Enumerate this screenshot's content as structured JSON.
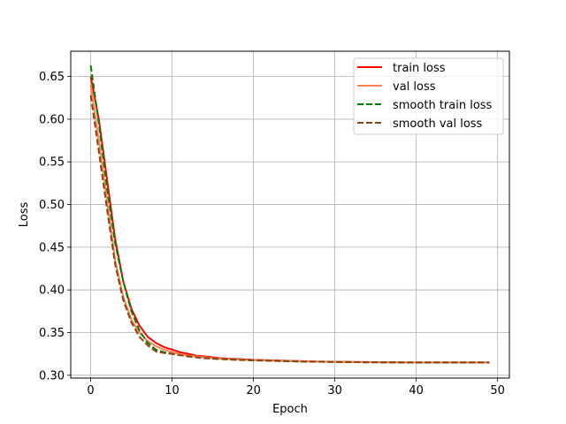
{
  "chart_data": {
    "type": "line",
    "title": "",
    "xlabel": "Epoch",
    "ylabel": "Loss",
    "xlim": [
      -2.45,
      51.45
    ],
    "ylim": [
      0.2967,
      0.6796
    ],
    "xticks": [
      0,
      10,
      20,
      30,
      40,
      50
    ],
    "xtick_labels": [
      "0",
      "10",
      "20",
      "30",
      "40",
      "50"
    ],
    "yticks": [
      0.3,
      0.35,
      0.4,
      0.45,
      0.5,
      0.55,
      0.6,
      0.65
    ],
    "ytick_labels": [
      "0.30",
      "0.35",
      "0.40",
      "0.45",
      "0.50",
      "0.55",
      "0.60",
      "0.65"
    ],
    "grid": true,
    "legend_position": "top-right",
    "series": [
      {
        "name": "train loss",
        "color": "#ff0000",
        "dash": "solid",
        "x": [
          0,
          1,
          2,
          3,
          4,
          5,
          6,
          7,
          8,
          9,
          10,
          11,
          12,
          13,
          14,
          15,
          16,
          17,
          18,
          19,
          20,
          22,
          24,
          26,
          28,
          30,
          32,
          34,
          36,
          38,
          40,
          42,
          44,
          46,
          48,
          49
        ],
        "y": [
          0.65,
          0.6,
          0.53,
          0.46,
          0.41,
          0.378,
          0.358,
          0.345,
          0.338,
          0.333,
          0.33,
          0.327,
          0.325,
          0.323,
          0.322,
          0.321,
          0.32,
          0.3195,
          0.319,
          0.3185,
          0.318,
          0.3175,
          0.317,
          0.3165,
          0.316,
          0.3158,
          0.3156,
          0.3154,
          0.3152,
          0.3151,
          0.315,
          0.315,
          0.315,
          0.315,
          0.315,
          0.315
        ]
      },
      {
        "name": "val loss",
        "color": "#ff7f50",
        "dash": "solid",
        "x": [
          0,
          1,
          2,
          3,
          4,
          5,
          6,
          7,
          8,
          9,
          10,
          11,
          12,
          13,
          14,
          15,
          16,
          17,
          18,
          19,
          20,
          22,
          24,
          26,
          28,
          30,
          32,
          34,
          36,
          38,
          40,
          42,
          44,
          46,
          48,
          49
        ],
        "y": [
          0.64,
          0.575,
          0.505,
          0.435,
          0.392,
          0.365,
          0.35,
          0.34,
          0.334,
          0.33,
          0.327,
          0.325,
          0.323,
          0.322,
          0.321,
          0.32,
          0.3195,
          0.319,
          0.3185,
          0.318,
          0.3178,
          0.3172,
          0.3167,
          0.3163,
          0.316,
          0.3157,
          0.3155,
          0.3153,
          0.3152,
          0.3151,
          0.315,
          0.315,
          0.315,
          0.315,
          0.315,
          0.315
        ]
      },
      {
        "name": "smooth train loss",
        "color": "#008000",
        "dash": "dashed",
        "x": [
          0,
          1,
          2,
          3,
          4,
          5,
          6,
          7,
          8,
          9,
          10,
          12,
          14,
          16,
          18,
          20,
          22,
          24,
          26,
          28,
          30,
          32,
          34,
          36,
          38,
          40,
          42,
          44,
          46,
          48,
          49
        ],
        "y": [
          0.663,
          0.595,
          0.52,
          0.455,
          0.41,
          0.375,
          0.352,
          0.338,
          0.33,
          0.327,
          0.325,
          0.322,
          0.32,
          0.319,
          0.318,
          0.3175,
          0.317,
          0.3165,
          0.316,
          0.3158,
          0.3156,
          0.3154,
          0.3152,
          0.3151,
          0.315,
          0.315,
          0.315,
          0.315,
          0.315,
          0.315,
          0.315
        ]
      },
      {
        "name": "smooth val loss",
        "color": "#8b4513",
        "dash": "dashed",
        "x": [
          0,
          1,
          2,
          3,
          4,
          5,
          6,
          7,
          8,
          9,
          10,
          12,
          14,
          16,
          18,
          20,
          22,
          24,
          26,
          28,
          30,
          32,
          34,
          36,
          38,
          40,
          42,
          44,
          46,
          48,
          49
        ],
        "y": [
          0.628,
          0.562,
          0.495,
          0.43,
          0.388,
          0.362,
          0.345,
          0.335,
          0.328,
          0.326,
          0.325,
          0.322,
          0.32,
          0.319,
          0.318,
          0.3175,
          0.317,
          0.3165,
          0.316,
          0.3158,
          0.3156,
          0.3154,
          0.3152,
          0.3151,
          0.315,
          0.315,
          0.315,
          0.315,
          0.315,
          0.315,
          0.315
        ]
      }
    ]
  }
}
